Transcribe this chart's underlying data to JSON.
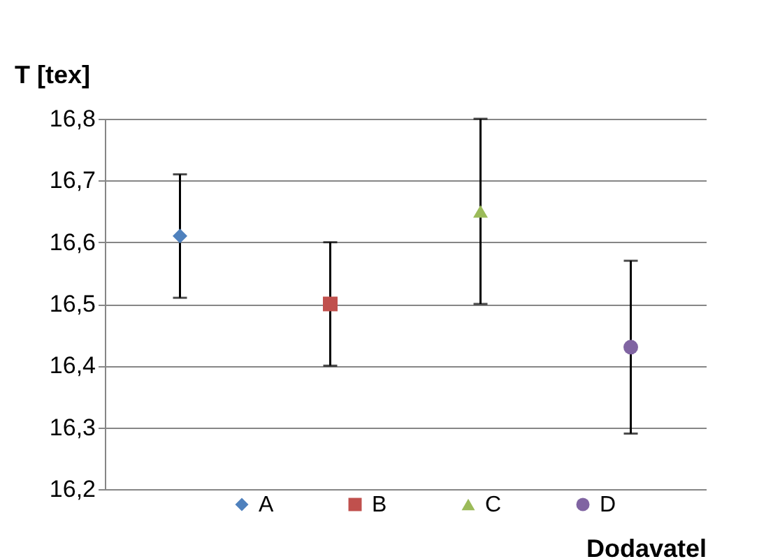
{
  "chart_data": {
    "type": "scatter",
    "xlabel": "Dodavatel",
    "ylabel": "T [tex]",
    "categories": [
      null,
      null,
      null,
      null
    ],
    "series": [
      {
        "name": "A",
        "color": "#4f81bd",
        "marker": "diamond",
        "values": [
          16.61,
          null,
          null,
          null
        ],
        "errors": [
          0.1,
          null,
          null,
          null
        ]
      },
      {
        "name": "B",
        "color": "#c0504d",
        "marker": "square",
        "values": [
          null,
          16.5,
          null,
          null
        ],
        "errors": [
          null,
          0.1,
          null,
          null
        ]
      },
      {
        "name": "C",
        "color": "#9bbb59",
        "marker": "triangle",
        "values": [
          null,
          null,
          16.65,
          null
        ],
        "errors": [
          null,
          null,
          0.15,
          null
        ]
      },
      {
        "name": "D",
        "color": "#8064a2",
        "marker": "circle",
        "values": [
          null,
          null,
          null,
          16.43
        ],
        "errors": [
          null,
          null,
          null,
          0.14
        ]
      }
    ],
    "ylim": [
      16.2,
      16.8
    ],
    "yticks": [
      {
        "value": 16.2,
        "label": "16,2"
      },
      {
        "value": 16.3,
        "label": "16,3"
      },
      {
        "value": 16.4,
        "label": "16,4"
      },
      {
        "value": 16.5,
        "label": "16,5"
      },
      {
        "value": 16.6,
        "label": "16,6"
      },
      {
        "value": 16.7,
        "label": "16,7"
      },
      {
        "value": 16.8,
        "label": "16,8"
      }
    ],
    "grid": "y",
    "legend": "bottom",
    "tick_labels": "y"
  }
}
